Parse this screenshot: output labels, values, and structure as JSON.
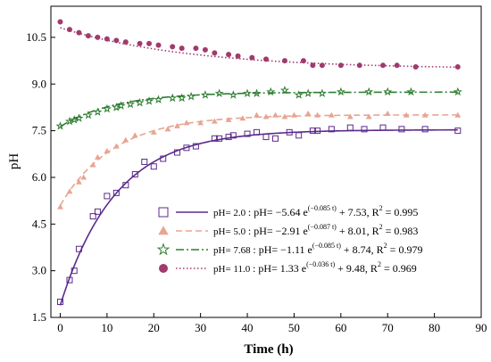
{
  "chart_data": {
    "type": "scatter",
    "xlabel": "Time (h)",
    "ylabel": "pH",
    "xlim": [
      -2,
      90
    ],
    "ylim": [
      1.5,
      11.5
    ],
    "xticks": [
      "0",
      "10",
      "20",
      "30",
      "40",
      "50",
      "60",
      "70",
      "80",
      "90"
    ],
    "yticks": [
      "1.5",
      "3.0",
      "4.5",
      "6.0",
      "7.5",
      "9.0",
      "10.5"
    ],
    "grid": false,
    "legend_placement": "bottom-right",
    "series": [
      {
        "name": "pH= 2.0",
        "color": "#5b2a8c",
        "marker": "square",
        "fit_style": "solid",
        "fit": {
          "a": -5.64,
          "k": -0.085,
          "c": 7.53
        },
        "legend_label": "pH= 2.0",
        "equation_prefix": ": pH= −5.64 e",
        "exponent": "(−0.085 t)",
        "equation_suffix": " + 7.53, R",
        "r2_value": " = 0.995",
        "points": [
          [
            0,
            2.0
          ],
          [
            2,
            2.7
          ],
          [
            3,
            3.0
          ],
          [
            4,
            3.7
          ],
          [
            7,
            4.75
          ],
          [
            8,
            4.9
          ],
          [
            10,
            5.4
          ],
          [
            12,
            5.5
          ],
          [
            14,
            5.75
          ],
          [
            16,
            6.1
          ],
          [
            18,
            6.5
          ],
          [
            20,
            6.35
          ],
          [
            22,
            6.6
          ],
          [
            25,
            6.8
          ],
          [
            27,
            6.95
          ],
          [
            29,
            7.0
          ],
          [
            33,
            7.25
          ],
          [
            34,
            7.25
          ],
          [
            36,
            7.3
          ],
          [
            37,
            7.35
          ],
          [
            40,
            7.4
          ],
          [
            42,
            7.45
          ],
          [
            44,
            7.3
          ],
          [
            46,
            7.25
          ],
          [
            49,
            7.45
          ],
          [
            51,
            7.35
          ],
          [
            54,
            7.5
          ],
          [
            55,
            7.5
          ],
          [
            58,
            7.55
          ],
          [
            62,
            7.6
          ],
          [
            65,
            7.55
          ],
          [
            69,
            7.6
          ],
          [
            73,
            7.55
          ],
          [
            78,
            7.55
          ],
          [
            85,
            7.5
          ]
        ]
      },
      {
        "name": "pH= 5.0",
        "color": "#e8a592",
        "marker": "triangle",
        "fit_style": "dashed",
        "fit": {
          "a": -2.91,
          "k": -0.087,
          "c": 8.01
        },
        "legend_label": "pH= 5.0",
        "equation_prefix": ": pH= −2.91 e",
        "exponent": "(−0.087 t)",
        "equation_suffix": " + 8.01, R",
        "r2_value": " = 0.983",
        "points": [
          [
            0,
            5.05
          ],
          [
            2,
            5.55
          ],
          [
            4,
            5.85
          ],
          [
            5,
            6.0
          ],
          [
            7,
            6.4
          ],
          [
            8,
            6.65
          ],
          [
            10,
            6.85
          ],
          [
            12,
            7.0
          ],
          [
            14,
            7.2
          ],
          [
            16,
            7.35
          ],
          [
            20,
            7.45
          ],
          [
            23,
            7.55
          ],
          [
            25,
            7.65
          ],
          [
            27,
            7.75
          ],
          [
            30,
            7.75
          ],
          [
            33,
            7.8
          ],
          [
            36,
            7.85
          ],
          [
            39,
            7.9
          ],
          [
            42,
            8.0
          ],
          [
            44,
            7.95
          ],
          [
            46,
            8.0
          ],
          [
            48,
            7.95
          ],
          [
            50,
            8.0
          ],
          [
            53,
            8.05
          ],
          [
            55,
            8.0
          ],
          [
            58,
            8.0
          ],
          [
            62,
            7.95
          ],
          [
            66,
            7.95
          ],
          [
            70,
            8.05
          ],
          [
            74,
            8.0
          ],
          [
            78,
            8.0
          ],
          [
            85,
            8.0
          ]
        ]
      },
      {
        "name": "pH= 7.68",
        "color": "#2e7d32",
        "marker": "star",
        "fit_style": "dashdot",
        "fit": {
          "a": -1.11,
          "k": -0.085,
          "c": 8.74
        },
        "legend_label": "pH= 7.68",
        "equation_prefix": ": pH= −1.11 e",
        "exponent": "(−0.085 t)",
        "equation_suffix": " + 8.74, R",
        "r2_value": " = 0.979",
        "points": [
          [
            0,
            7.65
          ],
          [
            2,
            7.8
          ],
          [
            3,
            7.85
          ],
          [
            4,
            7.9
          ],
          [
            6,
            8.0
          ],
          [
            8,
            8.1
          ],
          [
            10,
            8.2
          ],
          [
            12,
            8.25
          ],
          [
            13,
            8.3
          ],
          [
            15,
            8.35
          ],
          [
            17,
            8.4
          ],
          [
            19,
            8.45
          ],
          [
            21,
            8.5
          ],
          [
            24,
            8.55
          ],
          [
            26,
            8.55
          ],
          [
            28,
            8.6
          ],
          [
            31,
            8.65
          ],
          [
            34,
            8.7
          ],
          [
            37,
            8.65
          ],
          [
            40,
            8.7
          ],
          [
            42,
            8.7
          ],
          [
            45,
            8.75
          ],
          [
            48,
            8.8
          ],
          [
            51,
            8.65
          ],
          [
            53,
            8.7
          ],
          [
            56,
            8.7
          ],
          [
            60,
            8.75
          ],
          [
            66,
            8.75
          ],
          [
            70,
            8.75
          ],
          [
            75,
            8.75
          ],
          [
            85,
            8.75
          ]
        ]
      },
      {
        "name": "pH= 11.0",
        "color": "#a13a6e",
        "marker": "circle",
        "fit_style": "dotted",
        "fit": {
          "a": 1.33,
          "k": -0.036,
          "c": 9.48
        },
        "legend_label": "pH= 11.0",
        "equation_prefix": ": pH=   1.33 e",
        "exponent": "(−0.036 t)",
        "equation_suffix": " + 9.48, R",
        "r2_value": " = 0.969",
        "points": [
          [
            0,
            11.0
          ],
          [
            2,
            10.75
          ],
          [
            4,
            10.65
          ],
          [
            6,
            10.55
          ],
          [
            8,
            10.5
          ],
          [
            10,
            10.45
          ],
          [
            12,
            10.4
          ],
          [
            14,
            10.35
          ],
          [
            17,
            10.3
          ],
          [
            19,
            10.3
          ],
          [
            21,
            10.25
          ],
          [
            24,
            10.2
          ],
          [
            26,
            10.15
          ],
          [
            29,
            10.15
          ],
          [
            31,
            10.1
          ],
          [
            33,
            10.0
          ],
          [
            36,
            9.95
          ],
          [
            38,
            9.9
          ],
          [
            41,
            9.85
          ],
          [
            44,
            9.8
          ],
          [
            48,
            9.75
          ],
          [
            52,
            9.75
          ],
          [
            54,
            9.6
          ],
          [
            56,
            9.6
          ],
          [
            60,
            9.6
          ],
          [
            64,
            9.6
          ],
          [
            69,
            9.6
          ],
          [
            72,
            9.6
          ],
          [
            76,
            9.55
          ],
          [
            85,
            9.55
          ]
        ]
      }
    ]
  },
  "legend_sup2": "2"
}
